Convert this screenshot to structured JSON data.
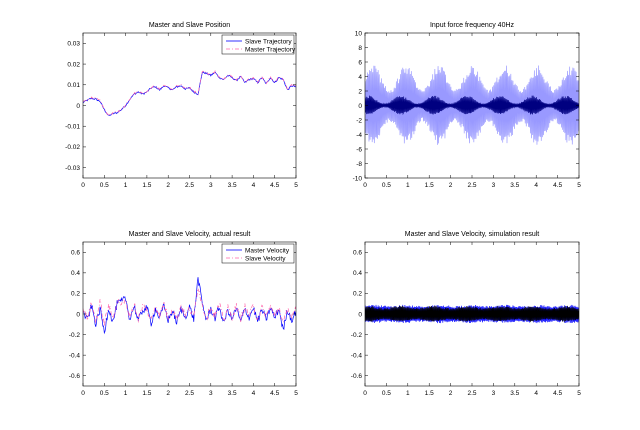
{
  "chart_data": [
    {
      "type": "line",
      "title": "Master and Slave Position",
      "xlabel": "",
      "ylabel": "",
      "xlim": [
        0,
        5
      ],
      "ylim": [
        -0.035,
        0.035
      ],
      "x_ticks": [
        "0",
        "0.5",
        "1",
        "1.5",
        "2",
        "2.5",
        "3",
        "3.5",
        "4",
        "4.5",
        "5"
      ],
      "y_ticks": [
        "0.03",
        "0.02",
        "0.01",
        "0",
        "-0.01",
        "-0.02",
        "-0.03"
      ],
      "y_tick_values": [
        0.03,
        0.02,
        0.01,
        0,
        -0.01,
        -0.02,
        -0.03
      ],
      "legend": {
        "position": "top-right",
        "entries": [
          "Slave Trajectory",
          "Master Trajectory"
        ]
      },
      "series": [
        {
          "name": "Slave Trajectory",
          "color": "#0000ff",
          "style": "solid",
          "x": [
            0,
            0.1,
            0.2,
            0.3,
            0.4,
            0.5,
            0.6,
            0.7,
            0.8,
            0.9,
            1.0,
            1.1,
            1.2,
            1.3,
            1.4,
            1.5,
            1.6,
            1.7,
            1.8,
            1.9,
            2.0,
            2.1,
            2.2,
            2.3,
            2.4,
            2.5,
            2.6,
            2.7,
            2.8,
            2.9,
            3.0,
            3.1,
            3.2,
            3.3,
            3.4,
            3.5,
            3.6,
            3.7,
            3.8,
            3.9,
            4.0,
            4.1,
            4.2,
            4.3,
            4.4,
            4.5,
            4.6,
            4.7,
            4.8,
            4.9,
            5.0
          ],
          "y": [
            0.0015,
            0.0025,
            0.0035,
            0.003,
            0.002,
            -0.002,
            -0.005,
            -0.004,
            -0.0035,
            -0.002,
            0.0,
            0.003,
            0.0055,
            0.0065,
            0.0055,
            0.0065,
            0.0085,
            0.009,
            0.0075,
            0.0095,
            0.0085,
            0.0075,
            0.009,
            0.0095,
            0.008,
            0.0085,
            0.0065,
            0.0055,
            0.016,
            0.0155,
            0.0145,
            0.016,
            0.0135,
            0.0125,
            0.0145,
            0.0135,
            0.012,
            0.014,
            0.011,
            0.0125,
            0.013,
            0.011,
            0.0135,
            0.0105,
            0.0135,
            0.011,
            0.0135,
            0.0125,
            0.0075,
            0.0095,
            0.009
          ]
        },
        {
          "name": "Master Trajectory",
          "color": "#ff66aa",
          "style": "dashdot",
          "x": [
            0,
            0.1,
            0.2,
            0.3,
            0.4,
            0.5,
            0.6,
            0.7,
            0.8,
            0.9,
            1.0,
            1.1,
            1.2,
            1.3,
            1.4,
            1.5,
            1.6,
            1.7,
            1.8,
            1.9,
            2.0,
            2.1,
            2.2,
            2.3,
            2.4,
            2.5,
            2.6,
            2.7,
            2.8,
            2.9,
            3.0,
            3.1,
            3.2,
            3.3,
            3.4,
            3.5,
            3.6,
            3.7,
            3.8,
            3.9,
            4.0,
            4.1,
            4.2,
            4.3,
            4.4,
            4.5,
            4.6,
            4.7,
            4.8,
            4.9,
            5.0
          ],
          "y": [
            0.0018,
            0.0028,
            0.0038,
            0.0033,
            0.0023,
            -0.0017,
            -0.0047,
            -0.0037,
            -0.0032,
            -0.0017,
            0.0003,
            0.0033,
            0.0058,
            0.0068,
            0.0058,
            0.0068,
            0.0088,
            0.0093,
            0.0078,
            0.0098,
            0.0088,
            0.0078,
            0.0093,
            0.0098,
            0.0083,
            0.0088,
            0.0068,
            0.0058,
            0.0163,
            0.0158,
            0.0148,
            0.0163,
            0.0138,
            0.0128,
            0.0148,
            0.0138,
            0.0123,
            0.0143,
            0.0113,
            0.0128,
            0.0133,
            0.0113,
            0.0138,
            0.0108,
            0.0138,
            0.0113,
            0.0138,
            0.0128,
            0.0078,
            0.0098,
            0.0093
          ]
        }
      ]
    },
    {
      "type": "line",
      "title": "Input force frequency 40Hz",
      "xlabel": "",
      "ylabel": "",
      "xlim": [
        0,
        5
      ],
      "ylim": [
        -10,
        10
      ],
      "x_ticks": [
        "0",
        "0.5",
        "1",
        "1.5",
        "2",
        "2.5",
        "3",
        "3.5",
        "4",
        "4.5",
        "5"
      ],
      "y_ticks": [
        "10",
        "8",
        "6",
        "4",
        "2",
        "0",
        "-2",
        "-4",
        "-6",
        "-8",
        "-10"
      ],
      "y_tick_values": [
        10,
        8,
        6,
        4,
        2,
        0,
        -2,
        -4,
        -6,
        -8,
        -10
      ],
      "series": [
        {
          "color": "#9999ff",
          "style": "solid",
          "oscillation": {
            "frequency_hz": 40,
            "amplitude_range": [
              2.0,
              5.0
            ]
          }
        },
        {
          "color": "#000080",
          "style": "solid",
          "oscillation": {
            "frequency_hz": 40,
            "amplitude_range": [
              0.2,
              1.2
            ]
          }
        }
      ]
    },
    {
      "type": "line",
      "title": "Master and Slave Velocity, actual result",
      "xlabel": "",
      "ylabel": "",
      "xlim": [
        0,
        5
      ],
      "ylim": [
        -0.7,
        0.7
      ],
      "x_ticks": [
        "0",
        "0.5",
        "1",
        "1.5",
        "2",
        "2.5",
        "3",
        "3.5",
        "4",
        "4.5",
        "5"
      ],
      "y_ticks": [
        "0.6",
        "0.4",
        "0.2",
        "0",
        "-0.2",
        "-0.4",
        "-0.6"
      ],
      "y_tick_values": [
        0.6,
        0.4,
        0.2,
        0,
        -0.2,
        -0.4,
        -0.6
      ],
      "legend": {
        "position": "top-right",
        "entries": [
          "Master Velocity",
          "Slave Velocity"
        ]
      },
      "series": [
        {
          "name": "Master Velocity",
          "color": "#0000ff",
          "style": "solid",
          "x": [
            0,
            0.1,
            0.2,
            0.3,
            0.4,
            0.5,
            0.6,
            0.7,
            0.8,
            0.9,
            1.0,
            1.1,
            1.2,
            1.3,
            1.4,
            1.5,
            1.6,
            1.7,
            1.8,
            1.9,
            2.0,
            2.1,
            2.2,
            2.3,
            2.4,
            2.5,
            2.6,
            2.7,
            2.8,
            2.9,
            3.0,
            3.1,
            3.2,
            3.3,
            3.4,
            3.5,
            3.6,
            3.7,
            3.8,
            3.9,
            4.0,
            4.1,
            4.2,
            4.3,
            4.4,
            4.5,
            4.6,
            4.7,
            4.8,
            4.9,
            5.0
          ],
          "y": [
            0.02,
            -0.06,
            0.08,
            -0.1,
            0.05,
            -0.18,
            0.06,
            -0.08,
            0.1,
            0.12,
            0.15,
            -0.05,
            0.08,
            -0.07,
            0.04,
            0.06,
            -0.09,
            0.05,
            -0.04,
            0.08,
            -0.06,
            0.03,
            -0.08,
            0.05,
            -0.03,
            0.07,
            -0.05,
            0.35,
            0.1,
            -0.06,
            0.05,
            -0.04,
            0.07,
            -0.09,
            0.04,
            -0.05,
            0.06,
            -0.08,
            0.05,
            -0.03,
            0.06,
            -0.07,
            0.04,
            -0.05,
            0.06,
            -0.04,
            0.05,
            -0.16,
            0.04,
            -0.06,
            0.03
          ]
        },
        {
          "name": "Slave Velocity",
          "color": "#ff66aa",
          "style": "dashdot",
          "x": [
            0,
            0.1,
            0.2,
            0.3,
            0.4,
            0.5,
            0.6,
            0.7,
            0.8,
            0.9,
            1.0,
            1.1,
            1.2,
            1.3,
            1.4,
            1.5,
            1.6,
            1.7,
            1.8,
            1.9,
            2.0,
            2.1,
            2.2,
            2.3,
            2.4,
            2.5,
            2.6,
            2.7,
            2.8,
            2.9,
            3.0,
            3.1,
            3.2,
            3.3,
            3.4,
            3.5,
            3.6,
            3.7,
            3.8,
            3.9,
            4.0,
            4.1,
            4.2,
            4.3,
            4.4,
            4.5,
            4.6,
            4.7,
            4.8,
            4.9,
            5.0
          ],
          "y": [
            0.05,
            -0.04,
            0.1,
            -0.07,
            0.12,
            -0.1,
            0.09,
            -0.05,
            0.13,
            0.1,
            0.12,
            -0.03,
            0.1,
            -0.05,
            0.08,
            0.04,
            -0.06,
            0.09,
            -0.02,
            0.1,
            -0.04,
            0.06,
            -0.05,
            0.08,
            -0.02,
            0.05,
            -0.03,
            0.28,
            0.08,
            -0.04,
            0.07,
            -0.02,
            0.09,
            -0.06,
            0.06,
            -0.03,
            0.08,
            -0.05,
            0.07,
            -0.02,
            0.08,
            -0.05,
            0.06,
            -0.03,
            0.08,
            -0.02,
            0.07,
            -0.1,
            0.06,
            -0.04,
            0.05
          ]
        }
      ]
    },
    {
      "type": "line",
      "title": "Master and Slave Velocity, simulation result",
      "xlabel": "",
      "ylabel": "",
      "xlim": [
        0,
        5
      ],
      "ylim": [
        -0.7,
        0.7
      ],
      "x_ticks": [
        "0",
        "0.5",
        "1",
        "1.5",
        "2",
        "2.5",
        "3",
        "3.5",
        "4",
        "4.5",
        "5"
      ],
      "y_ticks": [
        "0.6",
        "0.4",
        "0.2",
        "0",
        "-0.2",
        "-0.4",
        "-0.6"
      ],
      "y_tick_values": [
        0.6,
        0.4,
        0.2,
        0,
        -0.2,
        -0.4,
        -0.6
      ],
      "series": [
        {
          "color": "#0000ff",
          "style": "solid",
          "oscillation": {
            "frequency_hz": 40,
            "amplitude_range": [
              0.07,
              0.08
            ]
          }
        },
        {
          "color": "#000000",
          "style": "solid",
          "oscillation": {
            "frequency_hz": 40,
            "amplitude_range": [
              0.05,
              0.07
            ]
          }
        }
      ]
    }
  ]
}
